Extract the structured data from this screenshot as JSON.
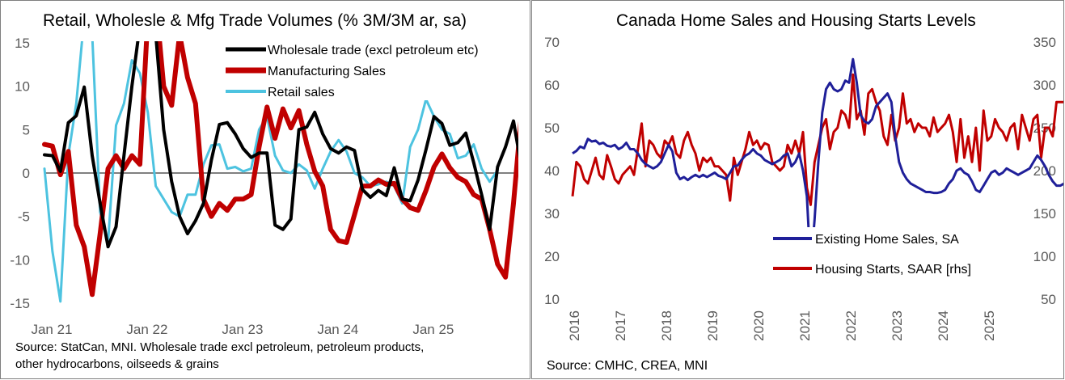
{
  "charts": {
    "left": {
      "title": "Retail, Wholesle & Mfg Trade Volumes (% 3M/3M ar, sa)",
      "source_line1": "Source: StatCan, MNI. Wholesale trade excl petroleum, petroleum products,",
      "source_line2": "other hydrocarbons, oilseeds & grains"
    },
    "right": {
      "title": "Canada Home Sales and Housing Starts Levels",
      "source": "Source: CMHC, CREA, MNI"
    }
  },
  "chart_data": [
    {
      "type": "line",
      "title": "Retail, Wholesle & Mfg Trade Volumes (% 3M/3M ar, sa)",
      "x_tick_labels": [
        "Jan 21",
        "Jan 22",
        "Jan 23",
        "Jan 24",
        "Jan 25"
      ],
      "x_start": "2021-01",
      "ylim": [
        -15,
        15
      ],
      "y_ticks": [
        -15,
        -10,
        -5,
        0,
        5,
        10,
        15
      ],
      "legend_position": "top-right",
      "colors": {
        "wholesale": "#000000",
        "manufacturing": "#c00000",
        "retail": "#4dc3e0",
        "zero_line": "#808080"
      },
      "series": [
        {
          "name": "Wholesale trade (excl petroleum etc)",
          "values": [
            2.1,
            2.0,
            0.2,
            5.8,
            6.6,
            9.9,
            2.0,
            -3.5,
            -8.5,
            -6.2,
            2.0,
            10.0,
            17.0,
            18.0,
            16.0,
            5.0,
            -1.0,
            -5.0,
            -7.0,
            -5.5,
            -3.5,
            1.5,
            5.6,
            5.8,
            4.5,
            2.8,
            1.8,
            2.3,
            2.3,
            -6.0,
            -6.5,
            -5.3,
            5.0,
            5.3,
            7.0,
            4.5,
            2.8,
            2.3,
            3.0,
            2.6,
            -1.9,
            -2.8,
            -2.0,
            -2.6,
            0.6,
            -3.0,
            -3.2,
            -0.8,
            2.7,
            6.5,
            5.7,
            3.2,
            3.5,
            4.6,
            1.2,
            -2.5,
            -6.5,
            0.7,
            3.0,
            6.0,
            0.7
          ]
        },
        {
          "name": "Manufacturing Sales",
          "values": [
            3.3,
            3.1,
            -0.2,
            2.5,
            -6.0,
            -8.5,
            -14.0,
            -7.0,
            0.5,
            2.0,
            0.5,
            2.0,
            1.0,
            18.0,
            20.0,
            10.0,
            7.8,
            16.0,
            11.0,
            8.0,
            -3.0,
            -5.0,
            -3.5,
            -4.3,
            -3.0,
            -3.0,
            -2.5,
            3.0,
            7.6,
            4.0,
            7.4,
            5.2,
            7.2,
            3.3,
            0.2,
            -1.5,
            -6.5,
            -7.8,
            -8.0,
            -4.8,
            -1.5,
            -1.5,
            -0.8,
            -1.3,
            -1.2,
            -3.0,
            -4.0,
            -4.3,
            -2.0,
            0.7,
            2.2,
            0.6,
            -0.5,
            -1.0,
            -2.5,
            -3.0,
            -6.5,
            -10.5,
            -12.0,
            -3.5,
            6.8,
            3.8
          ]
        },
        {
          "name": "Retail sales",
          "values": [
            0.5,
            -9.0,
            -14.8,
            2.0,
            8.0,
            18.0,
            16.0,
            -4.5,
            -8.0,
            5.5,
            8.0,
            13.0,
            11.5,
            7.0,
            -1.5,
            -3.0,
            -4.5,
            -5.0,
            -2.5,
            -2.5,
            1.0,
            3.2,
            3.3,
            0.5,
            0.7,
            0.2,
            0.5,
            5.0,
            6.5,
            2.0,
            0.3,
            0.0,
            1.0,
            0.3,
            -1.8,
            0.5,
            2.5,
            3.8,
            2.5,
            0.0,
            -0.5,
            -1.5,
            -1.3,
            -1.0,
            -1.5,
            -3.5,
            3.0,
            5.0,
            8.5,
            6.5,
            5.0,
            4.5,
            1.7,
            2.0,
            3.3,
            0.5,
            -1.0,
            0.3
          ]
        }
      ]
    },
    {
      "type": "line",
      "title": "Canada Home Sales and Housing Starts Levels",
      "x_tick_labels": [
        "2016",
        "2017",
        "2018",
        "2019",
        "2020",
        "2021",
        "2022",
        "2023",
        "2024",
        "2025"
      ],
      "x_start": "2016-01",
      "ylim_left": [
        10,
        70
      ],
      "ylim_right": [
        50,
        350
      ],
      "y_ticks_left": [
        10,
        20,
        30,
        40,
        50,
        60,
        70
      ],
      "y_ticks_right": [
        50,
        100,
        150,
        200,
        250,
        300,
        350
      ],
      "legend_position": "bottom-right",
      "colors": {
        "home_sales": "#1f1f99",
        "housing_starts": "#c00000"
      },
      "series": [
        {
          "name": "Existing Home Sales, SA",
          "axis": "left",
          "values": [
            44.0,
            44.6,
            45.6,
            45.2,
            47.4,
            46.8,
            47.0,
            46.2,
            46.5,
            45.8,
            45.6,
            46.0,
            45.0,
            45.5,
            46.5,
            45.0,
            45.0,
            44.0,
            42.5,
            41.5,
            41.0,
            40.5,
            41.0,
            42.0,
            44.0,
            46.0,
            44.5,
            39.5,
            38.0,
            38.5,
            37.8,
            38.5,
            39.0,
            38.5,
            39.0,
            38.5,
            39.0,
            39.5,
            38.8,
            38.5,
            38.0,
            39.5,
            41.0,
            41.2,
            42.5,
            43.5,
            44.0,
            45.0,
            44.0,
            43.5,
            42.5,
            42.0,
            41.5,
            42.0,
            42.5,
            43.5,
            44.0,
            41.0,
            42.0,
            44.0,
            40.0,
            34.0,
            17.0,
            28.5,
            42.0,
            53.5,
            59.0,
            60.5,
            59.0,
            58.5,
            59.0,
            61.0,
            60.5,
            66.0,
            60.5,
            53.0,
            51.5,
            51.0,
            52.0,
            55.0,
            56.0,
            57.0,
            58.0,
            56.0,
            48.0,
            42.0,
            39.5,
            38.0,
            37.0,
            36.5,
            36.0,
            35.5,
            35.0,
            35.0,
            34.8,
            34.8,
            35.0,
            35.5,
            37.0,
            38.0,
            40.0,
            40.5,
            39.5,
            39.0,
            37.5,
            35.5,
            35.0,
            36.5,
            38.0,
            39.5,
            40.0,
            39.0,
            39.5,
            40.5,
            40.0,
            39.5,
            39.0,
            39.5,
            40.0,
            40.5,
            42.0,
            43.5,
            42.5,
            41.0,
            39.0,
            37.5,
            36.5,
            36.5,
            37.0,
            38.0,
            39.0,
            40.0,
            40.5,
            40.0,
            40.5,
            40.5
          ]
        },
        {
          "name": "Housing Starts, SAAR [rhs]",
          "axis": "right",
          "values": [
            170,
            210,
            205,
            190,
            185,
            200,
            215,
            195,
            190,
            218,
            205,
            190,
            185,
            195,
            200,
            205,
            195,
            225,
            255,
            205,
            235,
            230,
            220,
            215,
            235,
            230,
            240,
            220,
            215,
            235,
            245,
            230,
            220,
            200,
            215,
            210,
            215,
            205,
            205,
            200,
            195,
            165,
            215,
            195,
            210,
            225,
            245,
            230,
            235,
            225,
            232,
            230,
            210,
            205,
            200,
            205,
            230,
            220,
            235,
            220,
            245,
            180,
            160,
            210,
            230,
            250,
            260,
            225,
            245,
            250,
            270,
            265,
            250,
            312,
            260,
            270,
            242,
            290,
            295,
            280,
            270,
            240,
            230,
            265,
            235,
            250,
            290,
            255,
            260,
            245,
            255,
            250,
            250,
            240,
            262,
            245,
            250,
            255,
            265,
            245,
            210,
            260,
            215,
            240,
            210,
            250,
            200,
            270,
            235,
            240,
            260,
            250,
            245,
            235,
            250,
            255,
            225,
            265,
            250,
            235,
            260,
            265,
            215,
            250,
            250,
            240,
            280,
            280,
            280,
            290,
            245,
            265,
            285,
            230,
            255
          ]
        }
      ]
    }
  ]
}
